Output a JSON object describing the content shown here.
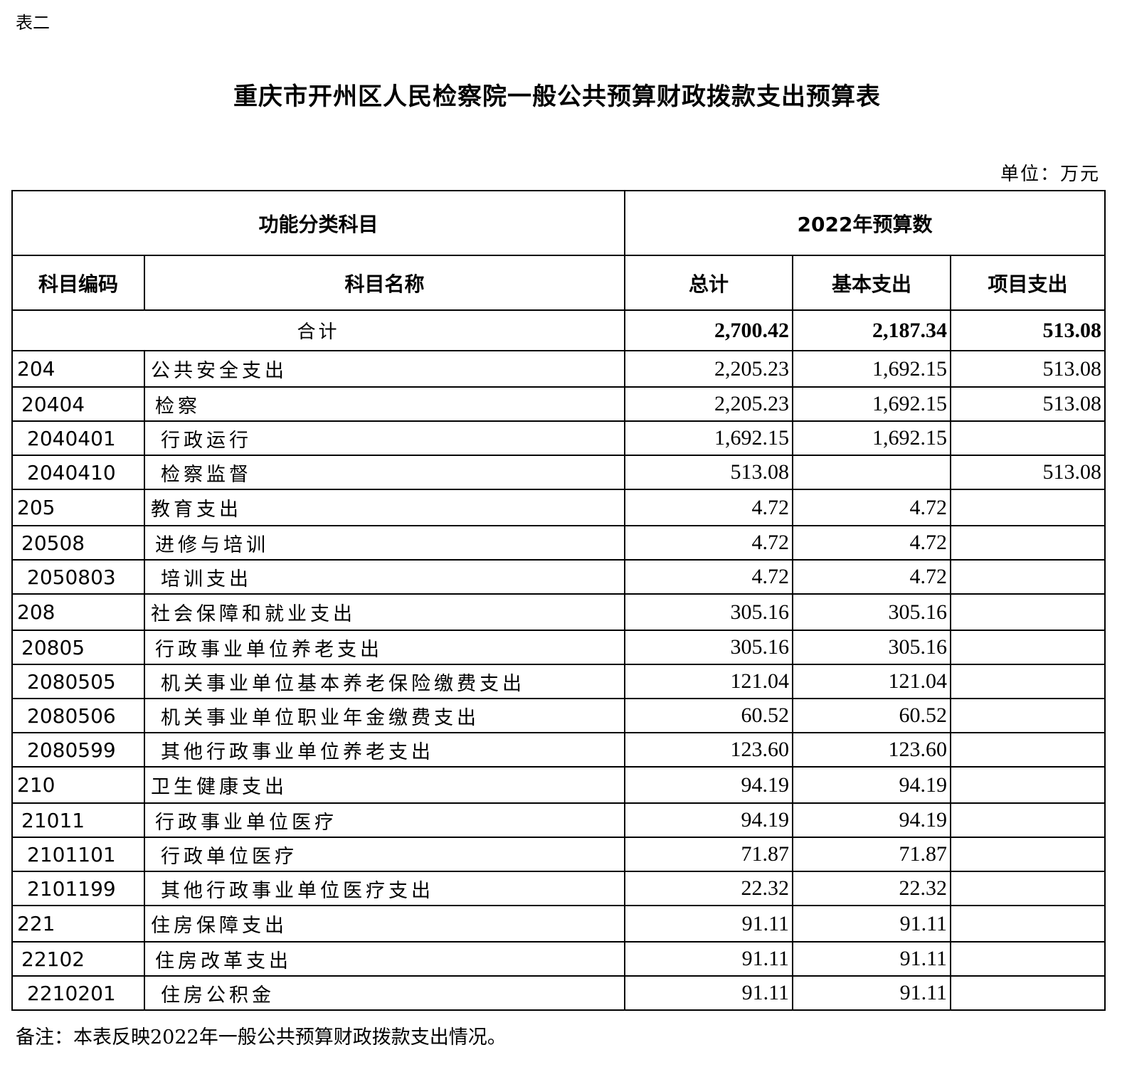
{
  "doc_label": "表二",
  "title": "重庆市开州区人民检察院一般公共预算财政拨款支出预算表",
  "unit": "单位：万元",
  "header": {
    "group_left": "功能分类科目",
    "group_right": "2022年预算数",
    "code": "科目编码",
    "name": "科目名称",
    "total": "总计",
    "basic": "基本支出",
    "project": "项目支出"
  },
  "total_row": {
    "label": "合计",
    "total": "2,700.42",
    "basic": "2,187.34",
    "project": "513.08"
  },
  "rows": [
    {
      "level": 1,
      "code": "204",
      "name": "公共安全支出",
      "total": "2,205.23",
      "basic": "1,692.15",
      "project": "513.08"
    },
    {
      "level": 2,
      "code": "20404",
      "name": "检察",
      "total": "2,205.23",
      "basic": "1,692.15",
      "project": "513.08"
    },
    {
      "level": 3,
      "code": "2040401",
      "name": "行政运行",
      "total": "1,692.15",
      "basic": "1,692.15",
      "project": ""
    },
    {
      "level": 3,
      "code": "2040410",
      "name": "检察监督",
      "total": "513.08",
      "basic": "",
      "project": "513.08"
    },
    {
      "level": 1,
      "code": "205",
      "name": "教育支出",
      "total": "4.72",
      "basic": "4.72",
      "project": ""
    },
    {
      "level": 2,
      "code": "20508",
      "name": "进修与培训",
      "total": "4.72",
      "basic": "4.72",
      "project": ""
    },
    {
      "level": 3,
      "code": "2050803",
      "name": "培训支出",
      "total": "4.72",
      "basic": "4.72",
      "project": ""
    },
    {
      "level": 1,
      "code": "208",
      "name": "社会保障和就业支出",
      "total": "305.16",
      "basic": "305.16",
      "project": ""
    },
    {
      "level": 2,
      "code": "20805",
      "name": "行政事业单位养老支出",
      "total": "305.16",
      "basic": "305.16",
      "project": ""
    },
    {
      "level": 3,
      "code": "2080505",
      "name": "机关事业单位基本养老保险缴费支出",
      "total": "121.04",
      "basic": "121.04",
      "project": ""
    },
    {
      "level": 3,
      "code": "2080506",
      "name": "机关事业单位职业年金缴费支出",
      "total": "60.52",
      "basic": "60.52",
      "project": ""
    },
    {
      "level": 3,
      "code": "2080599",
      "name": "其他行政事业单位养老支出",
      "total": "123.60",
      "basic": "123.60",
      "project": ""
    },
    {
      "level": 1,
      "code": "210",
      "name": "卫生健康支出",
      "total": "94.19",
      "basic": "94.19",
      "project": ""
    },
    {
      "level": 2,
      "code": "21011",
      "name": "行政事业单位医疗",
      "total": "94.19",
      "basic": "94.19",
      "project": ""
    },
    {
      "level": 3,
      "code": "2101101",
      "name": "行政单位医疗",
      "total": "71.87",
      "basic": "71.87",
      "project": ""
    },
    {
      "level": 3,
      "code": "2101199",
      "name": "其他行政事业单位医疗支出",
      "total": "22.32",
      "basic": "22.32",
      "project": ""
    },
    {
      "level": 1,
      "code": "221",
      "name": "住房保障支出",
      "total": "91.11",
      "basic": "91.11",
      "project": ""
    },
    {
      "level": 2,
      "code": "22102",
      "name": "住房改革支出",
      "total": "91.11",
      "basic": "91.11",
      "project": ""
    },
    {
      "level": 3,
      "code": "2210201",
      "name": "住房公积金",
      "total": "91.11",
      "basic": "91.11",
      "project": ""
    }
  ],
  "note": "备注：本表反映2022年一般公共预算财政拨款支出情况。"
}
